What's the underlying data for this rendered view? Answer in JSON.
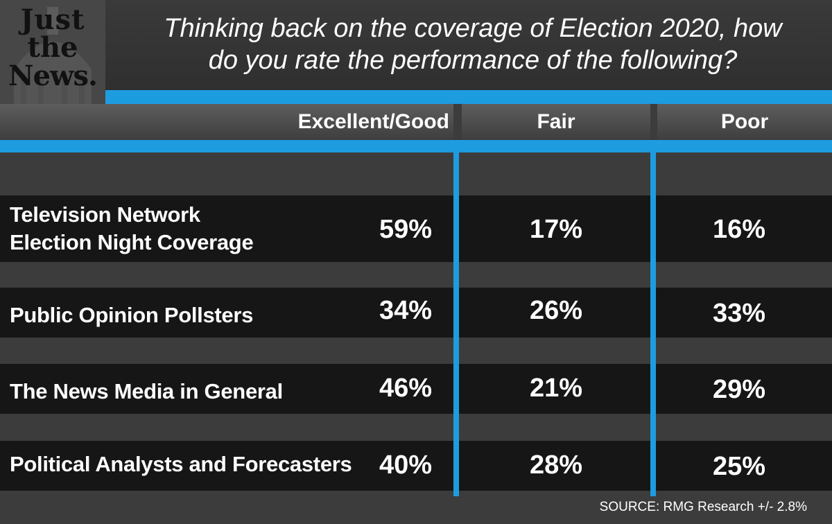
{
  "logo": {
    "line1": "Just",
    "line2": "the",
    "line3": "News."
  },
  "colors": {
    "accent": "#1e9ce0",
    "row_bg": "#161616",
    "page_bg": "#3c3c3c"
  },
  "chart_data": {
    "type": "table",
    "title": "Thinking back on the coverage of Election 2020, how do you rate the performance of the following?",
    "title_lines": [
      "Thinking back on the coverage of Election 2020, how",
      "do you rate the performance of the following?"
    ],
    "columns": [
      "Excellent/Good",
      "Fair",
      "Poor"
    ],
    "rows": [
      {
        "label": "Television Network Election Night Coverage",
        "label_lines": [
          "Television Network",
          "Election Night Coverage"
        ],
        "values": [
          "59%",
          "17%",
          "16%"
        ]
      },
      {
        "label": "Public Opinion Pollsters",
        "label_lines": [
          "Public Opinion Pollsters"
        ],
        "values": [
          "34%",
          "26%",
          "33%"
        ]
      },
      {
        "label": "The News Media in General",
        "label_lines": [
          "The News Media in General"
        ],
        "values": [
          "46%",
          "21%",
          "29%"
        ]
      },
      {
        "label": "Political Analysts and Forecasters",
        "label_lines": [
          "Political Analysts and Forecasters"
        ],
        "values": [
          "40%",
          "28%",
          "25%"
        ]
      }
    ],
    "source": "SOURCE: RMG Research +/- 2.8%"
  }
}
